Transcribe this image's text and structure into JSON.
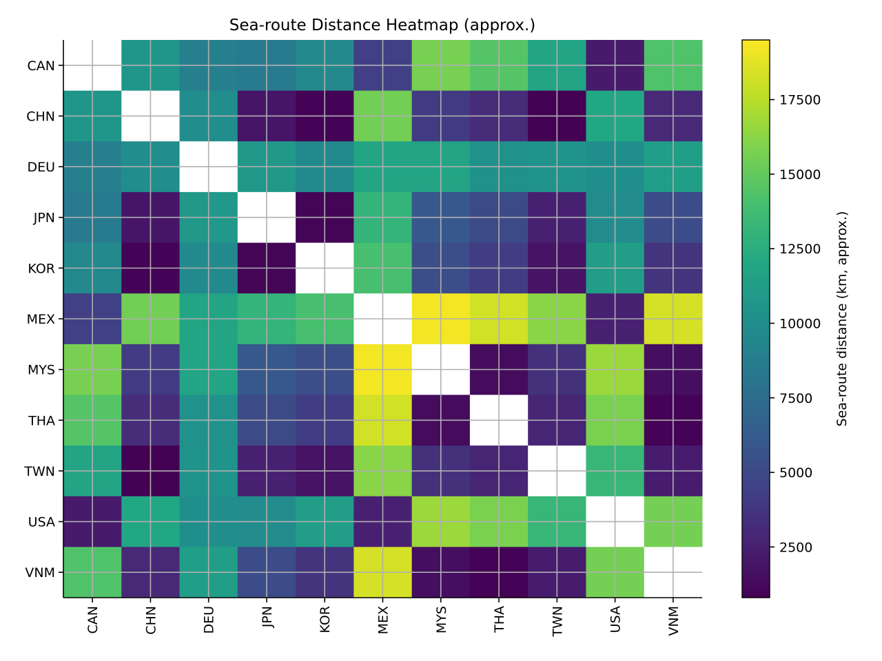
{
  "chart_data": {
    "type": "heatmap",
    "title": "Sea-route Distance Heatmap (approx.)",
    "countries": [
      "CAN",
      "CHN",
      "DEU",
      "JPN",
      "KOR",
      "MEX",
      "MYS",
      "THA",
      "TWN",
      "USA",
      "VNM"
    ],
    "matrix": [
      [
        null,
        10600,
        8800,
        8400,
        9600,
        4300,
        15700,
        14500,
        11800,
        2200,
        14300
      ],
      [
        10600,
        null,
        9900,
        1900,
        900,
        15500,
        4000,
        3200,
        800,
        12000,
        3000
      ],
      [
        8800,
        9900,
        null,
        10800,
        9700,
        11800,
        11800,
        10300,
        10400,
        10100,
        11300
      ],
      [
        8400,
        1900,
        10800,
        null,
        1000,
        13000,
        6000,
        5000,
        2500,
        9800,
        5100
      ],
      [
        9600,
        900,
        9700,
        1000,
        null,
        14000,
        5300,
        4200,
        1800,
        11200,
        3600
      ],
      [
        4300,
        15500,
        11800,
        13000,
        14000,
        null,
        19200,
        18200,
        16200,
        2500,
        18300
      ],
      [
        15700,
        4000,
        11800,
        6000,
        5300,
        19200,
        null,
        1400,
        3500,
        16700,
        1500
      ],
      [
        14500,
        3200,
        10300,
        5000,
        4200,
        18200,
        1400,
        null,
        2800,
        15800,
        900
      ],
      [
        11800,
        800,
        10400,
        2500,
        1800,
        16200,
        3500,
        2800,
        null,
        13200,
        2300
      ],
      [
        2200,
        12000,
        10100,
        9800,
        11200,
        2500,
        16700,
        15800,
        13200,
        null,
        15600
      ],
      [
        14300,
        3000,
        11300,
        5100,
        3600,
        18300,
        1500,
        900,
        2300,
        15600,
        null
      ]
    ],
    "colormap": "viridis",
    "colorbar": {
      "label": "Sea-route distance (km, approx.)",
      "min": 800,
      "max": 19500,
      "ticks": [
        "2500",
        "5000",
        "7500",
        "10000",
        "12500",
        "15000",
        "17500"
      ]
    },
    "diagonal": "blank (white)",
    "grid": true
  }
}
